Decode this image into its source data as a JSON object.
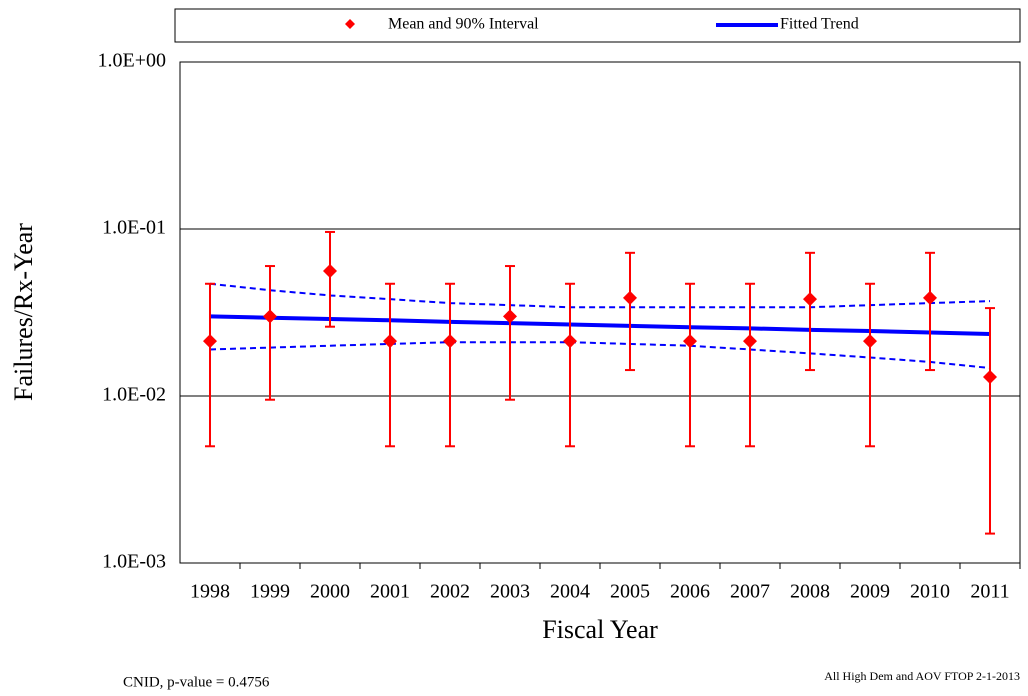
{
  "chart_data": {
    "type": "errorbar-trend",
    "x_label": "Fiscal Year",
    "y_label": "Failures/Rx-Year",
    "categories": [
      "1998",
      "1999",
      "2000",
      "2001",
      "2002",
      "2003",
      "2004",
      "2005",
      "2006",
      "2007",
      "2008",
      "2009",
      "2010",
      "2011"
    ],
    "series": [
      {
        "name": "Mean and 90% Interval",
        "color": "#ff0000",
        "values": [
          0.0213,
          0.03,
          0.056,
          0.0213,
          0.0213,
          0.03,
          0.0213,
          0.0387,
          0.0213,
          0.0213,
          0.038,
          0.0213,
          0.0387,
          0.013
        ],
        "lower": [
          0.005,
          0.0095,
          0.026,
          0.005,
          0.005,
          0.0095,
          0.005,
          0.0143,
          0.005,
          0.005,
          0.0143,
          0.005,
          0.0143,
          0.0015
        ],
        "upper": [
          0.047,
          0.06,
          0.096,
          0.047,
          0.047,
          0.06,
          0.047,
          0.072,
          0.047,
          0.047,
          0.072,
          0.047,
          0.072,
          0.0336
        ]
      },
      {
        "name": "Fitted Trend",
        "color": "#0000ff",
        "values": [
          0.03,
          0.0294,
          0.0289,
          0.0284,
          0.0278,
          0.0273,
          0.0268,
          0.0263,
          0.0258,
          0.0254,
          0.0249,
          0.0245,
          0.024,
          0.0235
        ],
        "lower": [
          0.019,
          0.0195,
          0.02,
          0.0205,
          0.021,
          0.021,
          0.021,
          0.0205,
          0.02,
          0.019,
          0.018,
          0.017,
          0.016,
          0.0147
        ],
        "upper": [
          0.047,
          0.043,
          0.04,
          0.038,
          0.036,
          0.035,
          0.034,
          0.034,
          0.034,
          0.034,
          0.034,
          0.035,
          0.036,
          0.037
        ]
      }
    ],
    "yscale": "log",
    "ylim": [
      0.001,
      1
    ],
    "yticks": [
      {
        "value": 0.001,
        "label": "1.0E-03"
      },
      {
        "value": 0.01,
        "label": "1.0E-02"
      },
      {
        "value": 0.1,
        "label": "1.0E-01"
      },
      {
        "value": 1,
        "label": "1.0E+00"
      }
    ],
    "grid": true,
    "annotations": [
      "CNID, p-value = 0.4756",
      "All High Dem and AOV FTOP 2-1-2013"
    ]
  }
}
